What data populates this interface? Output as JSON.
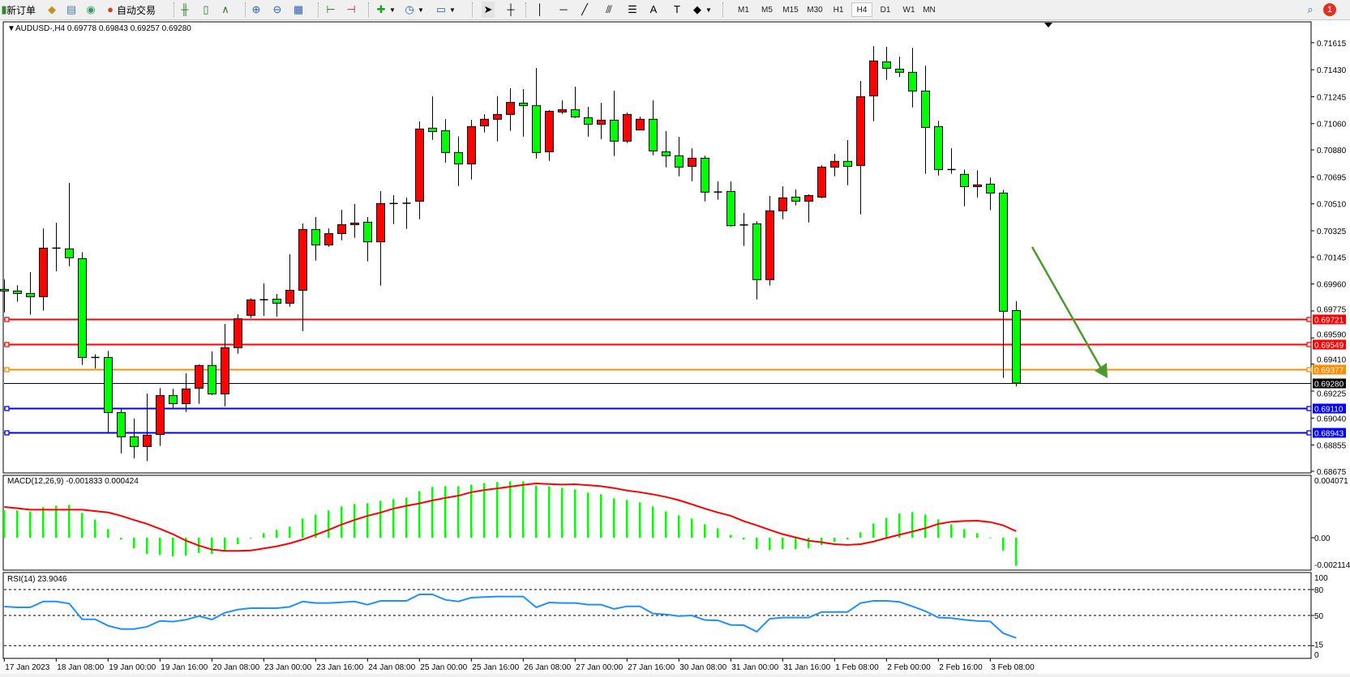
{
  "toolbar": {
    "new_order_label": "新订单",
    "auto_trading_label": "自动交易",
    "timeframes": [
      "M1",
      "M5",
      "M15",
      "M30",
      "H1",
      "H4",
      "D1",
      "W1",
      "MN"
    ],
    "active_timeframe": "H4",
    "notification_count": "1",
    "icons": [
      "new-order-icon",
      "metaeditor-icon",
      "navigator-icon",
      "signals-icon",
      "auto-trading-icon",
      "bar-chart-icon",
      "candlestick-icon",
      "line-chart-icon",
      "zoom-in-icon",
      "zoom-out-icon",
      "tile-windows-icon",
      "auto-scroll-icon",
      "chart-shift-icon",
      "indicators-icon",
      "periods-icon",
      "templates-icon",
      "cursor-icon",
      "crosshair-icon",
      "vertical-line-icon",
      "horizontal-line-icon",
      "trendline-icon",
      "fibo-channel-icon",
      "fibo-icon",
      "text-icon",
      "text-label-icon",
      "shapes-icon",
      "search-icon",
      "notification-icon"
    ]
  },
  "chart_data": {
    "type": "candlestick",
    "symbol_header": "AUDUSD-,H4  0.69778 0.69843 0.69257 0.69280",
    "colors": {
      "bear_body": "#00ff00",
      "bull_body": "#ff0000",
      "background": "#ffffff",
      "macd_hist": "#00ff00",
      "macd_signal": "#ff0000",
      "rsi_line": "#1e90ff",
      "arrow": "#4a9a2e"
    },
    "price_axis": {
      "range": [
        0.68675,
        0.717
      ],
      "ticks": [
        "0.71615",
        "0.71430",
        "0.71245",
        "0.71060",
        "0.70880",
        "0.70695",
        "0.70510",
        "0.70325",
        "0.70145",
        "0.69960",
        "0.69775",
        "0.69590",
        "0.69410",
        "0.69225",
        "0.69040",
        "0.68855",
        "0.68675"
      ]
    },
    "levels": [
      {
        "price": "0.69721",
        "color": "#ff0000"
      },
      {
        "price": "0.69549",
        "color": "#ff0000"
      },
      {
        "price": "0.69377",
        "color": "#ff8c00"
      },
      {
        "price": "0.69280",
        "color": "#000000",
        "current": true
      },
      {
        "price": "0.69110",
        "color": "#0000ff"
      },
      {
        "price": "0.68943",
        "color": "#0000ff"
      }
    ],
    "time_labels": [
      "17 Jan 2023",
      "18 Jan 08:00",
      "19 Jan 00:00",
      "19 Jan 16:00",
      "20 Jan 08:00",
      "23 Jan 00:00",
      "23 Jan 16:00",
      "24 Jan 08:00",
      "25 Jan 00:00",
      "25 Jan 16:00",
      "26 Jan 08:00",
      "27 Jan 00:00",
      "27 Jan 16:00",
      "30 Jan 08:00",
      "31 Jan 00:00",
      "31 Jan 16:00",
      "1 Feb 08:00",
      "2 Feb 00:00",
      "2 Feb 16:00",
      "3 Feb 08:00"
    ],
    "ohlc": [
      [
        0.69923,
        0.69991,
        0.69765,
        0.69912
      ],
      [
        0.69912,
        0.69951,
        0.69838,
        0.69895
      ],
      [
        0.69895,
        0.70041,
        0.69749,
        0.69873
      ],
      [
        0.69873,
        0.70341,
        0.69777,
        0.70206
      ],
      [
        0.70206,
        0.7038,
        0.70047,
        0.70206
      ],
      [
        0.70201,
        0.70653,
        0.70082,
        0.7014
      ],
      [
        0.70134,
        0.70178,
        0.69404,
        0.69456
      ],
      [
        0.69456,
        0.69478,
        0.6938,
        0.69456
      ],
      [
        0.69456,
        0.69501,
        0.68943,
        0.69078
      ],
      [
        0.69078,
        0.69102,
        0.68797,
        0.68912
      ],
      [
        0.68912,
        0.69038,
        0.68764,
        0.68845
      ],
      [
        0.68845,
        0.69208,
        0.68745,
        0.68923
      ],
      [
        0.68928,
        0.69245,
        0.68849,
        0.69195
      ],
      [
        0.69195,
        0.69241,
        0.69112,
        0.69139
      ],
      [
        0.69139,
        0.69347,
        0.69082,
        0.6924
      ],
      [
        0.69245,
        0.69408,
        0.69138,
        0.69401
      ],
      [
        0.69401,
        0.69497,
        0.69197,
        0.69206
      ],
      [
        0.69206,
        0.69686,
        0.69121,
        0.69523
      ],
      [
        0.69523,
        0.69752,
        0.69482,
        0.69721
      ],
      [
        0.69745,
        0.69862,
        0.69727,
        0.69851
      ],
      [
        0.69852,
        0.69964,
        0.69741,
        0.69852
      ],
      [
        0.69856,
        0.69891,
        0.69736,
        0.69828
      ],
      [
        0.69828,
        0.70164,
        0.69804,
        0.69917
      ],
      [
        0.69917,
        0.70375,
        0.69636,
        0.70334
      ],
      [
        0.70334,
        0.70419,
        0.70121,
        0.70228
      ],
      [
        0.70228,
        0.70341,
        0.70215,
        0.70306
      ],
      [
        0.70306,
        0.70469,
        0.7026,
        0.70367
      ],
      [
        0.70367,
        0.70508,
        0.70277,
        0.70378
      ],
      [
        0.70384,
        0.70419,
        0.70115,
        0.70249
      ],
      [
        0.70249,
        0.70597,
        0.69949,
        0.70512
      ],
      [
        0.70512,
        0.70569,
        0.70371,
        0.70512
      ],
      [
        0.70514,
        0.70553,
        0.70338,
        0.70514
      ],
      [
        0.70528,
        0.71075,
        0.70404,
        0.71023
      ],
      [
        0.71029,
        0.71247,
        0.70949,
        0.71006
      ],
      [
        0.71012,
        0.71091,
        0.70793,
        0.70862
      ],
      [
        0.70862,
        0.70973,
        0.70632,
        0.70784
      ],
      [
        0.70784,
        0.71086,
        0.70677,
        0.7104
      ],
      [
        0.71045,
        0.71125,
        0.70999,
        0.7109
      ],
      [
        0.7109,
        0.71247,
        0.70938,
        0.71123
      ],
      [
        0.71123,
        0.71303,
        0.7101,
        0.71206
      ],
      [
        0.71201,
        0.71297,
        0.70971,
        0.71184
      ],
      [
        0.71184,
        0.71441,
        0.70821,
        0.70862
      ],
      [
        0.70867,
        0.71153,
        0.70804,
        0.71145
      ],
      [
        0.7114,
        0.71219,
        0.71127,
        0.71156
      ],
      [
        0.71156,
        0.71314,
        0.71099,
        0.71106
      ],
      [
        0.71101,
        0.71175,
        0.70971,
        0.71056
      ],
      [
        0.71056,
        0.71203,
        0.70954,
        0.71084
      ],
      [
        0.71084,
        0.71286,
        0.70838,
        0.7094
      ],
      [
        0.7094,
        0.71136,
        0.70927,
        0.71123
      ],
      [
        0.71017,
        0.71108,
        0.71017,
        0.7109
      ],
      [
        0.7109,
        0.71219,
        0.70843,
        0.70873
      ],
      [
        0.70867,
        0.71008,
        0.7076,
        0.7084
      ],
      [
        0.7084,
        0.70969,
        0.70699,
        0.70762
      ],
      [
        0.70767,
        0.7089,
        0.70665,
        0.70823
      ],
      [
        0.70823,
        0.7084,
        0.70527,
        0.7059
      ],
      [
        0.70591,
        0.70664,
        0.70538,
        0.70591
      ],
      [
        0.70595,
        0.70664,
        0.70354,
        0.7036
      ],
      [
        0.70365,
        0.70447,
        0.70221,
        0.70365
      ],
      [
        0.70373,
        0.7039,
        0.69854,
        0.6999
      ],
      [
        0.6999,
        0.70564,
        0.69949,
        0.70462
      ],
      [
        0.70462,
        0.7063,
        0.70404,
        0.70551
      ],
      [
        0.70556,
        0.70608,
        0.70499,
        0.70528
      ],
      [
        0.70528,
        0.70575,
        0.70382,
        0.70567
      ],
      [
        0.70556,
        0.70775,
        0.70549,
        0.70762
      ],
      [
        0.70762,
        0.70853,
        0.70699,
        0.70801
      ],
      [
        0.70801,
        0.70947,
        0.70638,
        0.70767
      ],
      [
        0.70773,
        0.71353,
        0.70438,
        0.71245
      ],
      [
        0.71251,
        0.71592,
        0.71077,
        0.7149
      ],
      [
        0.71484,
        0.71586,
        0.7136,
        0.7144
      ],
      [
        0.71434,
        0.71519,
        0.71379,
        0.71412
      ],
      [
        0.71412,
        0.7158,
        0.71171,
        0.71284
      ],
      [
        0.71284,
        0.71458,
        0.70716,
        0.71034
      ],
      [
        0.7104,
        0.7108,
        0.70704,
        0.70745
      ],
      [
        0.70745,
        0.70891,
        0.70716,
        0.70745
      ],
      [
        0.70712,
        0.70745,
        0.70493,
        0.70628
      ],
      [
        0.70628,
        0.7074,
        0.70554,
        0.7064
      ],
      [
        0.70645,
        0.7069,
        0.70466,
        0.70584
      ],
      [
        0.70584,
        0.70606,
        0.69315,
        0.69773
      ],
      [
        0.69778,
        0.69843,
        0.69257,
        0.6928
      ]
    ],
    "annotation_arrow": {
      "direction": "down",
      "color": "#4a9a2e"
    },
    "macd": {
      "label": "MACD(12,26,9) -0.001833 0.000424",
      "axis_labels": [
        "0.004071",
        "0.00",
        "-0.002114"
      ],
      "range": [
        -0.002114,
        0.004071
      ],
      "histogram": [
        0.00178,
        0.00178,
        0.00172,
        0.00199,
        0.00209,
        0.00215,
        0.00162,
        0.00118,
        0.00056,
        -0.00012,
        -0.00069,
        -0.00106,
        -0.00113,
        -0.00121,
        -0.00116,
        -0.001,
        -0.00106,
        -0.00083,
        -0.00042,
        -4e-05,
        0.0003,
        0.00051,
        0.00072,
        0.00125,
        0.00151,
        0.00178,
        0.00204,
        0.0022,
        0.00225,
        0.00241,
        0.00252,
        0.00262,
        0.00304,
        0.00331,
        0.00336,
        0.00336,
        0.00347,
        0.00357,
        0.00363,
        0.00368,
        0.00368,
        0.00341,
        0.00336,
        0.00326,
        0.00315,
        0.00294,
        0.00283,
        0.00257,
        0.00246,
        0.00231,
        0.00204,
        0.00172,
        0.00146,
        0.00125,
        0.00088,
        0.00062,
        0.00019,
        -0.00012,
        -0.00074,
        -0.00081,
        -0.00074,
        -0.00074,
        -0.0007,
        -0.00048,
        -0.00028,
        -0.00012,
        0.00035,
        0.00093,
        0.0013,
        0.00158,
        0.00167,
        0.00151,
        0.0012,
        0.00088,
        0.00056,
        0.0003,
        2e-05,
        -0.00084,
        -0.001833
      ],
      "signal": [
        0.00201,
        0.00192,
        0.00183,
        0.00183,
        0.00183,
        0.00183,
        0.00183,
        0.00174,
        0.00165,
        0.00143,
        0.00116,
        0.0009,
        0.00058,
        0.00023,
        -0.00019,
        -0.00051,
        -0.00077,
        -0.00086,
        -0.00086,
        -0.00083,
        -0.0007,
        -0.00056,
        -0.00037,
        -0.00012,
        0.00019,
        0.00051,
        0.00086,
        0.00116,
        0.00143,
        0.00164,
        0.0019,
        0.00208,
        0.00224,
        0.00243,
        0.0026,
        0.00274,
        0.00297,
        0.00311,
        0.00322,
        0.00333,
        0.00345,
        0.00354,
        0.0035,
        0.00347,
        0.00349,
        0.00343,
        0.00336,
        0.00324,
        0.00308,
        0.00297,
        0.00283,
        0.00266,
        0.00245,
        0.00218,
        0.0019,
        0.00165,
        0.00143,
        0.00108,
        0.00081,
        0.00051,
        0.00023,
        2e-05,
        -0.00019,
        -0.0003,
        -0.00042,
        -0.00047,
        -0.00042,
        -0.00025,
        -2e-05,
        0.00019,
        0.0004,
        0.00062,
        0.0009,
        0.00104,
        0.00109,
        0.00111,
        0.00102,
        0.00081,
        0.000424
      ]
    },
    "rsi": {
      "label": "RSI(14) 23.9046",
      "axis_labels": [
        "100",
        "80",
        "50",
        "15",
        "0"
      ],
      "levels": [
        80,
        50,
        15
      ],
      "range": [
        0,
        100
      ],
      "values": [
        60.3,
        59.4,
        59.4,
        66.2,
        66.2,
        63.8,
        45.6,
        45.6,
        38.1,
        34.3,
        34.3,
        36.9,
        43.7,
        42.8,
        45.0,
        49.3,
        45.3,
        53.1,
        56.8,
        58.4,
        58.4,
        58.4,
        60.0,
        66.2,
        64.4,
        64.4,
        65.3,
        66.2,
        62.5,
        66.9,
        66.9,
        66.9,
        74.4,
        74.4,
        68.1,
        66.2,
        70.6,
        71.3,
        71.9,
        71.9,
        71.9,
        59.4,
        65.0,
        64.4,
        64.4,
        62.5,
        62.5,
        57.5,
        60.6,
        60.6,
        52.2,
        51.2,
        49.3,
        50.0,
        44.7,
        44.3,
        39.0,
        38.7,
        31.2,
        46.2,
        47.5,
        47.5,
        47.5,
        54.0,
        54.0,
        54.0,
        64.4,
        66.9,
        66.9,
        65.7,
        60.6,
        55.0,
        47.5,
        46.9,
        45.0,
        43.7,
        43.1,
        29.4,
        23.9
      ]
    }
  }
}
